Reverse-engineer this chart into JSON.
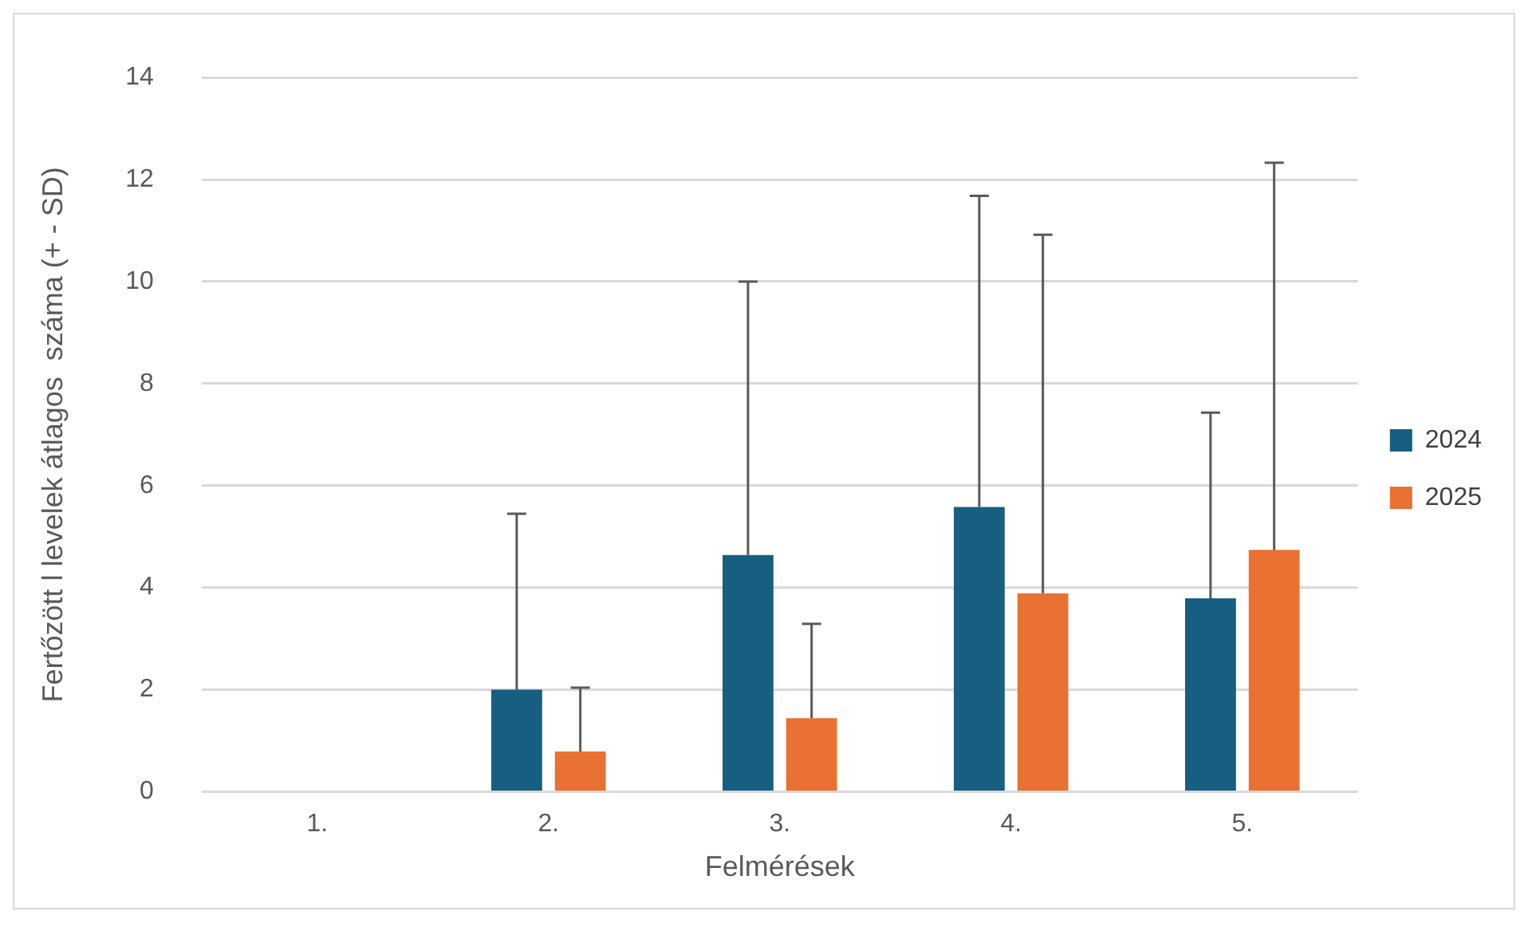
{
  "chart_data": {
    "type": "bar",
    "xlabel": "Felmérések",
    "ylabel": "Fertőzött l levelek átlagos  száma (+ - SD)",
    "categories": [
      "1.",
      "2.",
      "3.",
      "4.",
      "5."
    ],
    "series": [
      {
        "name": "2024",
        "color": "#175f81",
        "values": [
          0,
          2.0,
          4.64,
          5.58,
          3.79
        ],
        "errors": [
          null,
          [
            2.0,
            5.45
          ],
          [
            4.64,
            10.0
          ],
          [
            5.58,
            11.68
          ],
          [
            3.79,
            7.43
          ]
        ]
      },
      {
        "name": "2025",
        "color": "#e97132",
        "values": [
          0,
          0.79,
          1.44,
          3.89,
          4.74
        ],
        "errors": [
          null,
          [
            0.79,
            2.04
          ],
          [
            1.44,
            3.29
          ],
          [
            3.89,
            10.92
          ],
          [
            4.74,
            12.33
          ]
        ]
      }
    ],
    "ylim": [
      0,
      14
    ],
    "yticks": [
      0,
      2,
      4,
      6,
      8,
      10,
      12,
      14
    ],
    "grid": "y",
    "legend": "right"
  }
}
